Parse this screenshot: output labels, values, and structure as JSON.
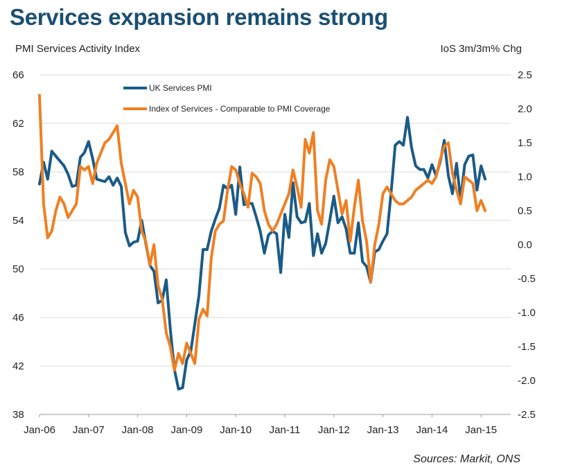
{
  "chart_data": {
    "type": "line",
    "title": "Services expansion remains strong",
    "y_left_label": "PMI Services Activity Index",
    "y_right_label": "IoS 3m/3m% Chg",
    "source": "Sources: Markit, ONS",
    "x_start": "Jan-06",
    "x_tick_labels": [
      "Jan-06",
      "Jan-07",
      "Jan-08",
      "Jan-09",
      "Jan-10",
      "Jan-11",
      "Jan-12",
      "Jan-13",
      "Jan-14",
      "Jan-15"
    ],
    "y_left_lim": [
      38,
      66
    ],
    "y_left_ticks": [
      "38",
      "42",
      "46",
      "50",
      "54",
      "58",
      "62",
      "66"
    ],
    "y_right_lim": [
      -2.5,
      2.5
    ],
    "y_right_ticks": [
      "-2.5",
      "-2.0",
      "-1.5",
      "-1.0",
      "-0.5",
      "0.0",
      "0.5",
      "1.0",
      "1.5",
      "2.0",
      "2.5"
    ],
    "grid": true,
    "legend_position": "top-left",
    "series": [
      {
        "name": "UK Services PMI",
        "axis": "left",
        "color": "#1a5b87",
        "values": [
          57.0,
          58.8,
          57.4,
          59.7,
          59.3,
          58.9,
          58.5,
          57.8,
          56.8,
          56.9,
          59.2,
          59.6,
          60.5,
          59.1,
          57.4,
          57.3,
          57.2,
          57.6,
          56.9,
          57.5,
          56.8,
          53.0,
          51.9,
          52.2,
          52.3,
          54.0,
          52.1,
          50.3,
          49.8,
          47.2,
          47.4,
          49.1,
          45.0,
          41.7,
          40.1,
          40.2,
          42.5,
          43.2,
          45.5,
          47.8,
          51.6,
          51.6,
          53.1,
          54.1,
          55.0,
          56.9,
          56.6,
          56.9,
          54.5,
          58.4,
          55.3,
          55.4,
          55.4,
          54.3,
          53.1,
          51.3,
          52.8,
          53.1,
          52.9,
          49.7,
          54.5,
          52.6,
          57.1,
          54.3,
          53.8,
          53.9,
          55.4,
          51.1,
          52.9,
          51.3,
          52.1,
          54.0,
          56.0,
          53.8,
          54.3,
          53.3,
          51.3,
          51.3,
          53.8,
          50.6,
          50.2,
          48.9,
          51.4,
          51.6,
          52.3,
          52.9,
          56.3,
          60.2,
          60.5,
          60.2,
          62.5,
          60.0,
          58.5,
          58.2,
          58.2,
          57.5,
          58.6,
          57.7,
          58.8,
          60.6,
          57.7,
          56.2,
          58.7,
          55.7,
          58.6,
          59.3,
          59.4,
          56.5,
          58.5,
          57.4
        ]
      },
      {
        "name": "Index of Services - Comparable to PMI Coverage",
        "axis": "right",
        "color": "#f07f22",
        "values": [
          2.2,
          0.6,
          0.1,
          0.2,
          0.5,
          0.7,
          0.6,
          0.4,
          0.5,
          0.6,
          1.15,
          1.1,
          1.15,
          0.9,
          1.2,
          1.35,
          1.5,
          1.55,
          1.65,
          1.75,
          1.2,
          0.9,
          0.6,
          0.8,
          0.7,
          0.2,
          0.05,
          -0.3,
          0.0,
          -0.6,
          -0.8,
          -1.3,
          -1.5,
          -1.85,
          -1.6,
          -1.75,
          -1.45,
          -1.6,
          -1.75,
          -1.1,
          -0.95,
          -1.05,
          -0.2,
          0.2,
          0.3,
          0.35,
          0.8,
          1.15,
          1.1,
          0.9,
          0.75,
          0.55,
          1.05,
          1.0,
          0.9,
          0.5,
          0.3,
          0.2,
          0.3,
          0.45,
          0.6,
          0.75,
          1.1,
          0.85,
          0.55,
          1.55,
          1.35,
          1.65,
          0.5,
          0.3,
          0.95,
          1.25,
          1.15,
          0.8,
          0.45,
          0.65,
          0.05,
          0.55,
          0.95,
          0.35,
          0.05,
          -0.55,
          0.0,
          0.3,
          0.75,
          0.85,
          0.75,
          0.65,
          0.6,
          0.6,
          0.65,
          0.7,
          0.8,
          0.85,
          0.9,
          0.95,
          0.9,
          1.0,
          1.25,
          1.45,
          1.5,
          1.05,
          0.8,
          0.6,
          1.0,
          0.95,
          0.9,
          0.5,
          0.65,
          0.5
        ]
      }
    ]
  }
}
